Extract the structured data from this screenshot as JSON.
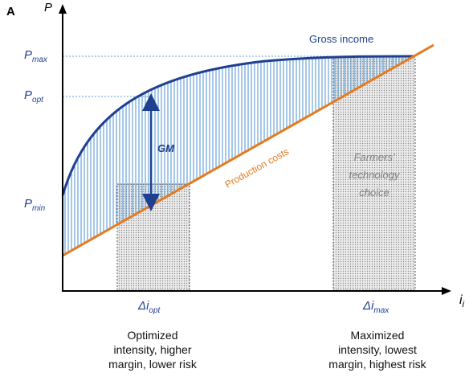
{
  "panel_label": "A",
  "y_axis_label": "P",
  "x_axis_label": "i",
  "x_axis_subscript": "i",
  "y_levels": [
    {
      "main": "P",
      "sub": "max"
    },
    {
      "main": "P",
      "sub": "opt"
    },
    {
      "main": "P",
      "sub": "min"
    }
  ],
  "curve_labels": {
    "gross_income": "Gross income",
    "production_costs": "Production costs",
    "gross_margin": "GM"
  },
  "x_markers": [
    {
      "main": "Δi",
      "sub": "opt"
    },
    {
      "main": "Δi",
      "sub": "max"
    }
  ],
  "choice_box": [
    "Farmers'",
    "technology",
    "choice"
  ],
  "captions": {
    "optimized": [
      "Optimized",
      "intensity, higher",
      "margin, lower risk"
    ],
    "maximized": [
      "Maximized",
      "intensity, lowest",
      "margin, highest risk"
    ]
  },
  "colors": {
    "gross_income": "#1f3f8f",
    "production_costs": "#e57a1e",
    "hatch": "#5b9bd5",
    "label_blue": "#1f3f8f",
    "choice_text": "#7f7f7f",
    "axis": "#000000"
  }
}
